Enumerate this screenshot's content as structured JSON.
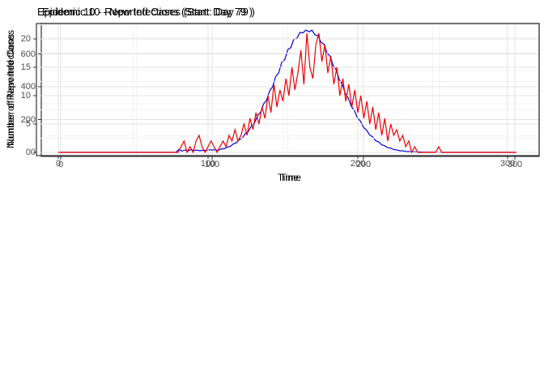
{
  "colors": {
    "background": "#ffffff",
    "panel_border": "#333333",
    "grid_major": "#e3e3e3",
    "grid_minor": "#f2f2f2",
    "tick_mark": "#333333",
    "tick_text": "#4d4d4d",
    "infections_line": "#0000dd",
    "reported_line": "#ee0000"
  },
  "chart_data": [
    {
      "type": "line",
      "title": "Epidemic 10 - New Infections (Start: Day 79 )",
      "xlabel": "Time",
      "ylabel": "Number of New Infections",
      "legend": "none",
      "grid": true,
      "line_color": "#0000dd",
      "xlim": [
        -15,
        315
      ],
      "ylim": [
        -25,
        785
      ],
      "x_tick_labels": [
        0,
        100,
        200,
        300
      ],
      "y_tick_labels": [
        0,
        200,
        400,
        600
      ],
      "x_start": 0,
      "x_step": 2,
      "values": [
        0,
        0,
        0,
        0,
        0,
        0,
        0,
        0,
        0,
        0,
        0,
        0,
        0,
        0,
        0,
        0,
        0,
        0,
        0,
        0,
        0,
        0,
        0,
        0,
        0,
        0,
        0,
        0,
        0,
        0,
        0,
        0,
        0,
        0,
        0,
        0,
        0,
        0,
        0,
        18,
        8,
        14,
        10,
        16,
        12,
        14,
        10,
        13,
        11,
        16,
        14,
        16,
        13,
        20,
        22,
        32,
        36,
        52,
        58,
        78,
        88,
        115,
        128,
        162,
        180,
        224,
        243,
        295,
        318,
        375,
        400,
        461,
        485,
        548,
        565,
        626,
        638,
        690,
        694,
        731,
        728,
        745,
        735,
        744,
        715,
        712,
        670,
        658,
        604,
        585,
        528,
        503,
        444,
        415,
        358,
        331,
        280,
        255,
        210,
        190,
        152,
        137,
        106,
        95,
        71,
        64,
        46,
        41,
        28,
        26,
        17,
        15,
        10,
        9,
        6,
        5,
        3,
        4,
        2,
        2,
        1,
        1,
        1,
        1,
        0,
        0,
        0,
        0,
        0,
        0,
        0,
        0,
        0,
        0,
        0,
        0,
        0,
        0,
        0,
        0,
        0,
        0,
        0,
        0,
        0,
        0,
        0,
        0,
        0,
        0,
        0
      ]
    },
    {
      "type": "line",
      "title": "Epidemic 10 - Reported Cases (Start: Day 79 )",
      "xlabel": "Time",
      "ylabel": "Number of Reported Cases",
      "legend": "none",
      "grid": true,
      "line_color": "#ee0000",
      "xlim": [
        -16,
        319
      ],
      "ylim": [
        -0.6,
        22.7
      ],
      "x_tick_labels": [
        0,
        100,
        200,
        300
      ],
      "y_tick_labels": [
        0,
        5,
        10,
        15,
        20
      ],
      "x_start": 0,
      "x_step": 2,
      "values": [
        0,
        0,
        0,
        0,
        0,
        0,
        0,
        0,
        0,
        0,
        0,
        0,
        0,
        0,
        0,
        0,
        0,
        0,
        0,
        0,
        0,
        0,
        0,
        0,
        0,
        0,
        0,
        0,
        0,
        0,
        0,
        0,
        0,
        0,
        0,
        0,
        0,
        0,
        0,
        0,
        0,
        1,
        2,
        0,
        1,
        0,
        2,
        3,
        1,
        0,
        1,
        2,
        1,
        0,
        1,
        2,
        1,
        3,
        2,
        4,
        2,
        3,
        5,
        3,
        6,
        4,
        7,
        5,
        8,
        6,
        10,
        7,
        12,
        8,
        11,
        9,
        13,
        10,
        15,
        11,
        14,
        18,
        12,
        21,
        15,
        13,
        19,
        21,
        16,
        19,
        14,
        17,
        12,
        15,
        10,
        13,
        9,
        12,
        8,
        11,
        7,
        10,
        6,
        9,
        5,
        8,
        4,
        7,
        3,
        6,
        2,
        5,
        3,
        4,
        2,
        3,
        1,
        2,
        0,
        1,
        0,
        0,
        0,
        0,
        0,
        0,
        0,
        1,
        0,
        0,
        0,
        0,
        0,
        0,
        0,
        0,
        0,
        0,
        0,
        0,
        0,
        0,
        0,
        0,
        0,
        0,
        0,
        0,
        0,
        0,
        0,
        0,
        0,
        0
      ]
    }
  ]
}
